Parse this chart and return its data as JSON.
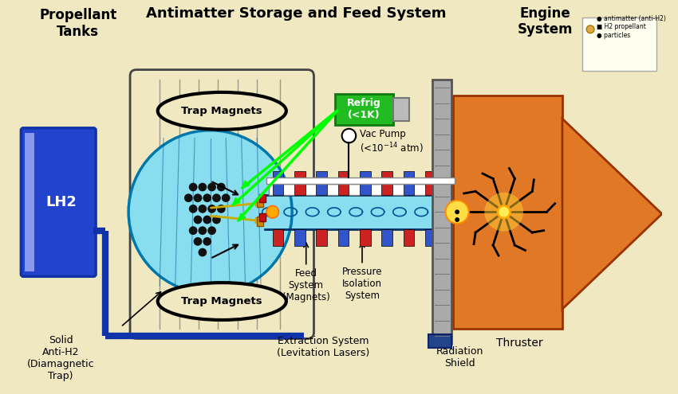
{
  "bg_color": "#F0E8C0",
  "title_propellant": "Propellant\nTanks",
  "title_antimatter": "Antimatter Storage and Feed System",
  "title_engine": "Engine\nSystem",
  "label_lh2": "LH2",
  "label_solid": "Solid\nAnti-H2\n(Diamagnetic\nTrap)",
  "label_trap_top": "Trap Magnets",
  "label_trap_bot": "Trap Magnets",
  "label_refrig": "Refrig\n(<1K)",
  "label_feed": "Feed\nSystem\n(Magnets)",
  "label_pressure": "Pressure\nIsolation\nSystem",
  "label_extraction": "Extraction System\n(Levitation Lasers)",
  "label_thruster": "Thruster",
  "label_radiation": "Radiation\nShield"
}
